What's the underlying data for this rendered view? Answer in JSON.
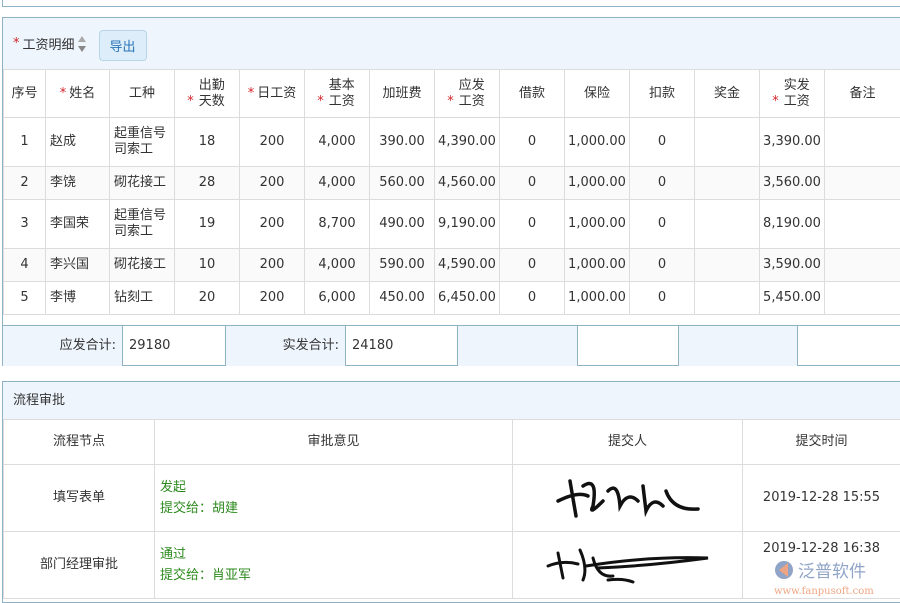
{
  "salary": {
    "title": "工资明细",
    "export_label": "导出",
    "columns": [
      {
        "label": "序号",
        "required": false
      },
      {
        "label": "姓名",
        "required": true
      },
      {
        "label": "工种",
        "required": false
      },
      {
        "label": "出勤天数",
        "required": true
      },
      {
        "label": "日工资",
        "required": true
      },
      {
        "label": "基本工资",
        "required": true
      },
      {
        "label": "加班费",
        "required": false
      },
      {
        "label": "应发工资",
        "required": true
      },
      {
        "label": "借款",
        "required": false
      },
      {
        "label": "保险",
        "required": false
      },
      {
        "label": "扣款",
        "required": false
      },
      {
        "label": "奖金",
        "required": false
      },
      {
        "label": "实发工资",
        "required": true
      },
      {
        "label": "备注",
        "required": false
      }
    ],
    "rows": [
      [
        "1",
        "赵成",
        "起重信号司索工",
        "18",
        "200",
        "4,000",
        "390.00",
        "4,390.00",
        "0",
        "1,000.00",
        "0",
        "",
        "3,390.00",
        ""
      ],
      [
        "2",
        "李饶",
        "砌花接工",
        "28",
        "200",
        "4,000",
        "560.00",
        "4,560.00",
        "0",
        "1,000.00",
        "0",
        "",
        "3,560.00",
        ""
      ],
      [
        "3",
        "李国荣",
        "起重信号司索工",
        "19",
        "200",
        "8,700",
        "490.00",
        "9,190.00",
        "0",
        "1,000.00",
        "0",
        "",
        "8,190.00",
        ""
      ],
      [
        "4",
        "李兴国",
        "砌花接工",
        "10",
        "200",
        "4,000",
        "590.00",
        "4,590.00",
        "0",
        "1,000.00",
        "0",
        "",
        "3,590.00",
        ""
      ],
      [
        "5",
        "李博",
        "钻刻工",
        "20",
        "200",
        "6,000",
        "450.00",
        "6,450.00",
        "0",
        "1,000.00",
        "0",
        "",
        "5,450.00",
        ""
      ]
    ],
    "totals": {
      "due_label": "应发合计:",
      "due_value": "29180",
      "actual_label": "实发合计:",
      "actual_value": "24180"
    }
  },
  "approval": {
    "title": "流程审批",
    "columns": [
      "流程节点",
      "审批意见",
      "提交人",
      "提交时间"
    ],
    "rows": [
      {
        "node": "填写表单",
        "opinion": "发起",
        "submit_to": "提交给：胡建",
        "time": "2019-12-28 15:55"
      },
      {
        "node": "部门经理审批",
        "opinion": "通过",
        "submit_to": "提交给：肖亚军",
        "time": "2019-12-28 16:38"
      }
    ]
  },
  "watermark": {
    "brand": "泛普软件",
    "url": "www.fanpusoft.com"
  }
}
